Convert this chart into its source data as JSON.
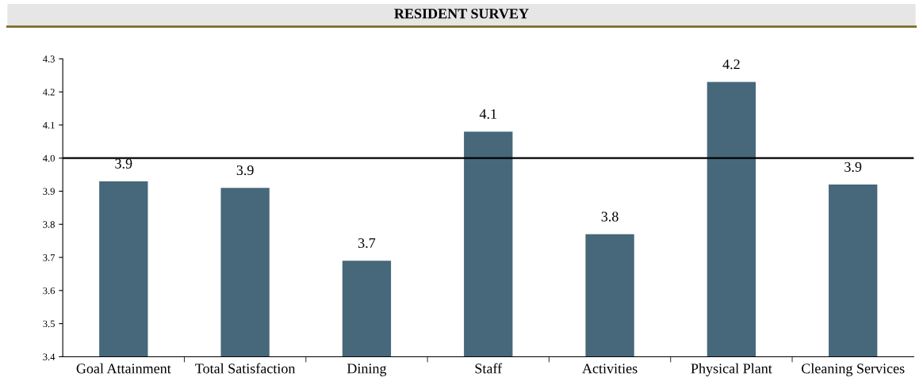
{
  "chart_data": {
    "type": "bar",
    "title": "RESIDENT SURVEY",
    "categories": [
      "Goal Attainment",
      "Total Satisfaction",
      "Dining",
      "Staff",
      "Activities",
      "Physical Plant",
      "Cleaning Services"
    ],
    "values": [
      3.93,
      3.91,
      3.69,
      4.08,
      3.77,
      4.23,
      3.92
    ],
    "value_labels": [
      "3.9",
      "3.9",
      "3.7",
      "4.1",
      "3.8",
      "4.2",
      "3.9"
    ],
    "color": "#46687a",
    "ylim": [
      3.4,
      4.3
    ],
    "yticks": [
      3.4,
      3.5,
      3.6,
      3.7,
      3.8,
      3.9,
      {
        "value": 4.0,
        "label": "4.0"
      },
      4.1,
      4.2,
      4.3
    ],
    "ref_lines": [
      {
        "axis": "y",
        "value": 4.0,
        "label": null,
        "color": "#000000"
      }
    ],
    "grid": false,
    "legend": false
  }
}
